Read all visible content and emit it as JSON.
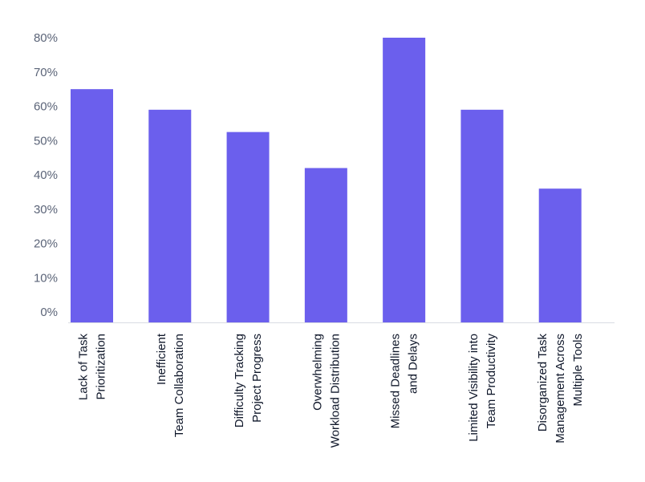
{
  "chart_data": {
    "type": "bar",
    "title": "",
    "xlabel": "",
    "ylabel": "",
    "ylim": [
      -3,
      80
    ],
    "yticks": [
      "0%",
      "10%",
      "20%",
      "30%",
      "40%",
      "50%",
      "60%",
      "70%",
      "80%"
    ],
    "categories": [
      [
        "Lack of Task",
        "Prioritization"
      ],
      [
        "Inefficient",
        "Team Collaboration"
      ],
      [
        "Difficulty Tracking",
        "Project Progress"
      ],
      [
        "Overwhelming",
        "Workload Distribution"
      ],
      [
        "Missed Deadlines",
        "and Delays"
      ],
      [
        "Limited Visibility into",
        "Team Productivity"
      ],
      [
        "Disorganized Task",
        "Management Across",
        "Multiple Tools"
      ]
    ],
    "values": [
      65,
      59,
      52.5,
      42,
      80,
      59,
      36
    ],
    "bar_color": "#6b5fed",
    "grid": false,
    "legend": "none"
  }
}
